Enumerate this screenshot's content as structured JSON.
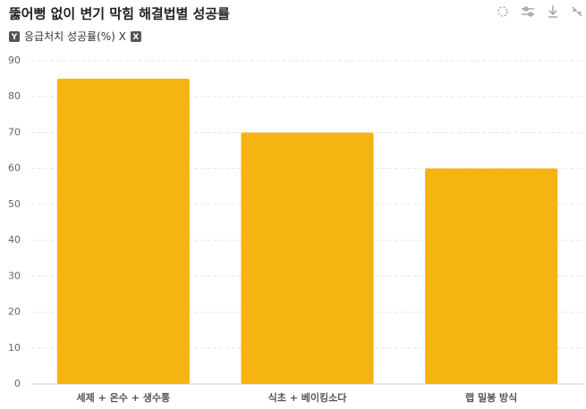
{
  "chart_data": {
    "type": "bar",
    "title": "뚫어뻥 없이 변기 막힘 해결법별 성공률",
    "legend_badges": {
      "axis": "Y",
      "close": "X"
    },
    "categories": [
      "세제 + 온수 + 생수통",
      "식초 + 베이킹소다",
      "랩 밀봉 방식"
    ],
    "series": [
      {
        "name": "응급처치 성공률(%) X",
        "color": "#f6b412",
        "values": [
          85,
          70,
          60
        ]
      }
    ],
    "ylim": [
      0,
      90
    ],
    "yticks": [
      0,
      10,
      20,
      30,
      40,
      50,
      60,
      70,
      80,
      90
    ],
    "grid": true
  }
}
